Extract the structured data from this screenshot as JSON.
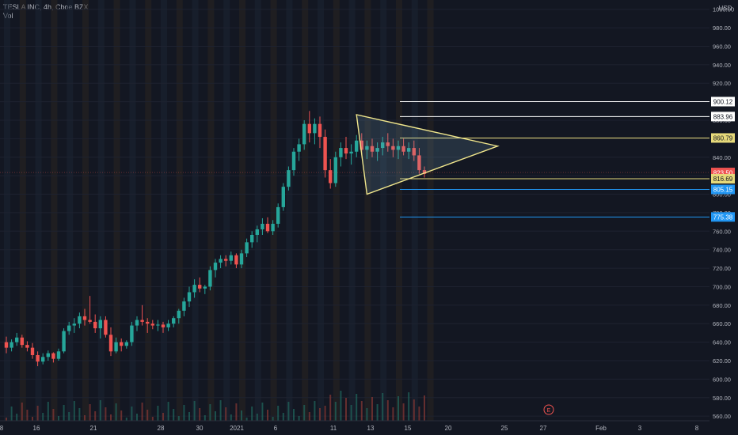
{
  "symbol_line": "TESLA INC, 4h, Cboe BZX",
  "volume_label": "Vol",
  "currency": "USD",
  "colors": {
    "background": "#131722",
    "up": "#26a69a",
    "down": "#ef5350",
    "axis_text": "#b2b5be",
    "triangle": "#f0e68c",
    "level_white": "#ffffff",
    "level_yellow": "#e6d97a",
    "level_blue": "#2196f3",
    "current_price": "#ef5350"
  },
  "price_axis_ticks": [
    "1000.00",
    "980.00",
    "960.00",
    "940.00",
    "920.00",
    "900.00",
    "880.00",
    "860.00",
    "840.00",
    "820.00",
    "800.00",
    "780.00",
    "760.00",
    "740.00",
    "720.00",
    "700.00",
    "680.00",
    "660.00",
    "640.00",
    "620.00",
    "600.00",
    "580.00",
    "560.00"
  ],
  "date_axis_ticks": [
    "8",
    "16",
    "21",
    "28",
    "30",
    "2021",
    "6",
    "11",
    "13",
    "15",
    "20",
    "25",
    "27",
    "Feb",
    "3",
    "8"
  ],
  "events_marker": "E",
  "chart_data": {
    "type": "candlestick",
    "ylim": [
      555,
      1010
    ],
    "horizontal_levels": [
      {
        "price": 900.12,
        "label": "900.12",
        "style": "white"
      },
      {
        "price": 883.96,
        "label": "883.96",
        "style": "white"
      },
      {
        "price": 860.79,
        "label": "860.79",
        "style": "yellow"
      },
      {
        "price": 823.5,
        "label": "823.50",
        "style": "current"
      },
      {
        "price": 816.69,
        "label": "816.69",
        "style": "yellow"
      },
      {
        "price": 805.15,
        "label": "805.15",
        "style": "blue"
      },
      {
        "price": 775.38,
        "label": "775.38",
        "style": "blue"
      }
    ],
    "triangle_pattern": [
      {
        "date_index": 67,
        "price": 886
      },
      {
        "date_index": 69,
        "price": 800
      },
      {
        "date_index": 94,
        "price": 852
      }
    ],
    "candles": [
      [
        640,
        646,
        628,
        634
      ],
      [
        634,
        643,
        630,
        640
      ],
      [
        640,
        650,
        636,
        645
      ],
      [
        645,
        648,
        634,
        637
      ],
      [
        637,
        641,
        630,
        634
      ],
      [
        634,
        639,
        622,
        626
      ],
      [
        626,
        630,
        614,
        619
      ],
      [
        619,
        628,
        616,
        624
      ],
      [
        624,
        631,
        620,
        628
      ],
      [
        628,
        629,
        618,
        622
      ],
      [
        622,
        633,
        620,
        630
      ],
      [
        630,
        655,
        628,
        652
      ],
      [
        652,
        662,
        648,
        658
      ],
      [
        658,
        666,
        650,
        660
      ],
      [
        660,
        672,
        655,
        668
      ],
      [
        668,
        676,
        658,
        664
      ],
      [
        664,
        690,
        660,
        662
      ],
      [
        662,
        670,
        650,
        655
      ],
      [
        655,
        668,
        644,
        664
      ],
      [
        664,
        668,
        645,
        648
      ],
      [
        648,
        656,
        625,
        630
      ],
      [
        630,
        645,
        628,
        640
      ],
      [
        640,
        644,
        630,
        636
      ],
      [
        636,
        642,
        633,
        640
      ],
      [
        640,
        662,
        636,
        658
      ],
      [
        658,
        668,
        652,
        664
      ],
      [
        664,
        680,
        658,
        662
      ],
      [
        662,
        666,
        650,
        660
      ],
      [
        660,
        664,
        654,
        658
      ],
      [
        658,
        664,
        652,
        659
      ],
      [
        659,
        662,
        650,
        656
      ],
      [
        656,
        664,
        652,
        660
      ],
      [
        660,
        668,
        656,
        666
      ],
      [
        666,
        676,
        660,
        674
      ],
      [
        674,
        688,
        668,
        684
      ],
      [
        684,
        700,
        678,
        694
      ],
      [
        694,
        708,
        688,
        702
      ],
      [
        702,
        710,
        694,
        698
      ],
      [
        698,
        702,
        692,
        700
      ],
      [
        700,
        722,
        696,
        718
      ],
      [
        718,
        730,
        710,
        726
      ],
      [
        726,
        734,
        720,
        730
      ],
      [
        730,
        734,
        722,
        728
      ],
      [
        728,
        738,
        724,
        734
      ],
      [
        734,
        736,
        720,
        724
      ],
      [
        724,
        740,
        720,
        736
      ],
      [
        736,
        752,
        732,
        748
      ],
      [
        748,
        760,
        742,
        756
      ],
      [
        756,
        766,
        748,
        762
      ],
      [
        762,
        774,
        756,
        768
      ],
      [
        768,
        775,
        758,
        760
      ],
      [
        760,
        772,
        756,
        768
      ],
      [
        768,
        790,
        764,
        786
      ],
      [
        786,
        812,
        782,
        808
      ],
      [
        808,
        830,
        804,
        826
      ],
      [
        826,
        850,
        820,
        846
      ],
      [
        846,
        860,
        836,
        854
      ],
      [
        854,
        880,
        848,
        876
      ],
      [
        876,
        890,
        856,
        866
      ],
      [
        866,
        882,
        854,
        876
      ],
      [
        876,
        884,
        850,
        862
      ],
      [
        862,
        870,
        818,
        826
      ],
      [
        826,
        838,
        806,
        812
      ],
      [
        812,
        846,
        808,
        840
      ],
      [
        840,
        856,
        830,
        850
      ],
      [
        850,
        862,
        838,
        844
      ],
      [
        844,
        854,
        832,
        846
      ],
      [
        846,
        864,
        840,
        858
      ],
      [
        858,
        866,
        842,
        848
      ],
      [
        848,
        858,
        838,
        852
      ],
      [
        852,
        860,
        840,
        846
      ],
      [
        846,
        856,
        836,
        850
      ],
      [
        850,
        862,
        842,
        856
      ],
      [
        856,
        866,
        846,
        852
      ],
      [
        852,
        860,
        840,
        848
      ],
      [
        848,
        858,
        838,
        852
      ],
      [
        852,
        860,
        842,
        846
      ],
      [
        846,
        856,
        838,
        850
      ],
      [
        850,
        858,
        836,
        842
      ],
      [
        842,
        850,
        822,
        826
      ],
      [
        826,
        830,
        818,
        822
      ]
    ]
  }
}
